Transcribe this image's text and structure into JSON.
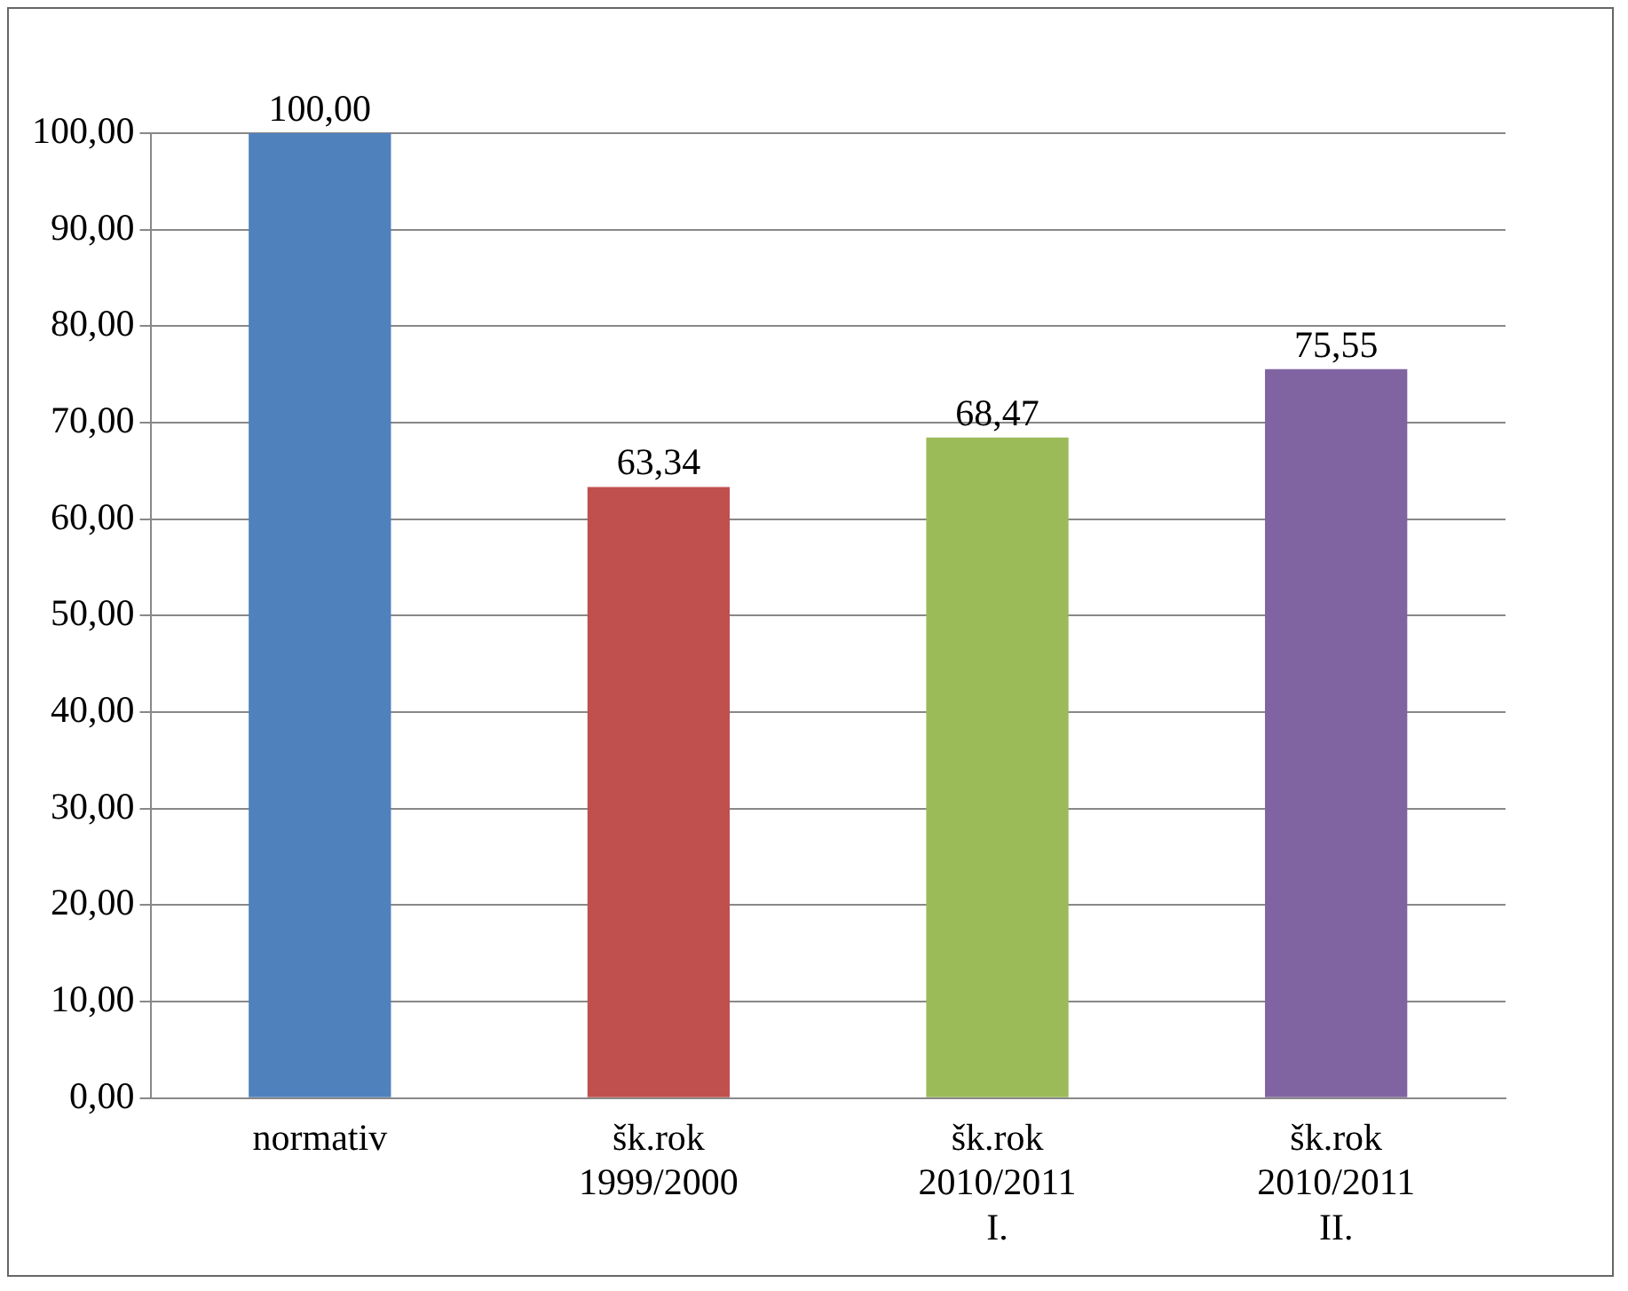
{
  "chart_data": {
    "type": "bar",
    "categories": [
      "normativ",
      "šk.rok\n1999/2000",
      "šk.rok\n2010/2011\nI.",
      "šk.rok\n2010/2011\nII."
    ],
    "values": [
      100,
      63.34,
      68.47,
      75.55
    ],
    "colors": [
      "#4f81bd",
      "#c0504d",
      "#9bbb59",
      "#8064a2"
    ],
    "value_labels": [
      "100,00",
      "63,34",
      "68,47",
      "75,55"
    ],
    "ylim": [
      0,
      100
    ],
    "yticks": [
      {
        "value": 0,
        "label": "0,00"
      },
      {
        "value": 10,
        "label": "10,00"
      },
      {
        "value": 20,
        "label": "20,00"
      },
      {
        "value": 30,
        "label": "30,00"
      },
      {
        "value": 40,
        "label": "40,00"
      },
      {
        "value": 50,
        "label": "50,00"
      },
      {
        "value": 60,
        "label": "60,00"
      },
      {
        "value": 70,
        "label": "70,00"
      },
      {
        "value": 80,
        "label": "80,00"
      },
      {
        "value": 90,
        "label": "90,00"
      },
      {
        "value": 100,
        "label": "100,00"
      }
    ],
    "grid": "y",
    "legend": false
  }
}
